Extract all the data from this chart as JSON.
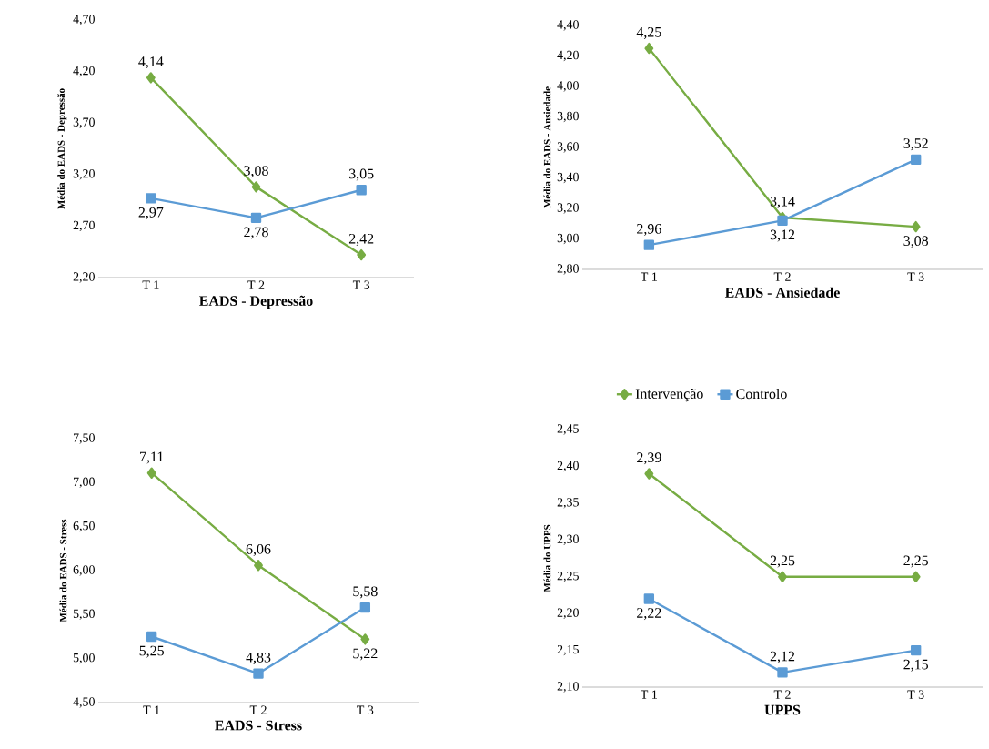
{
  "chart_data": [
    {
      "type": "line",
      "categories": [
        "T 1",
        "T 2",
        "T 3"
      ],
      "xlabel": "EADS - Depressão",
      "ylabel": "Média do EADS - Depressão",
      "ylim": [
        2.2,
        4.7
      ],
      "yticks": [
        {
          "value": 2.2,
          "label": "2,20"
        },
        {
          "value": 2.7,
          "label": "2,70"
        },
        {
          "value": 3.2,
          "label": "3,20"
        },
        {
          "value": 3.7,
          "label": "3,70"
        },
        {
          "value": 4.2,
          "label": "4,20"
        },
        {
          "value": 4.7,
          "label": "4,70"
        }
      ],
      "series": [
        {
          "color": "#77ac43",
          "marker": "diamond",
          "values": [
            4.14,
            3.08,
            2.42
          ],
          "value_labels": [
            "4,14",
            "3,08",
            "2,42"
          ]
        },
        {
          "color": "#5b9bd5",
          "marker": "square",
          "values": [
            2.97,
            2.78,
            3.05
          ],
          "value_labels": [
            "2,97",
            "2,78",
            "3,05"
          ]
        }
      ]
    },
    {
      "type": "line",
      "categories": [
        "T 1",
        "T 2",
        "T 3"
      ],
      "xlabel": "EADS - Ansiedade",
      "ylabel": "Média do EADS - Ansiedade",
      "ylim": [
        2.8,
        4.4
      ],
      "yticks": [
        {
          "value": 2.8,
          "label": "2,80"
        },
        {
          "value": 3.0,
          "label": "3,00"
        },
        {
          "value": 3.2,
          "label": "3,20"
        },
        {
          "value": 3.4,
          "label": "3,40"
        },
        {
          "value": 3.6,
          "label": "3,60"
        },
        {
          "value": 3.8,
          "label": "3,80"
        },
        {
          "value": 4.0,
          "label": "4,00"
        },
        {
          "value": 4.2,
          "label": "4,20"
        },
        {
          "value": 4.4,
          "label": "4,40"
        }
      ],
      "series": [
        {
          "color": "#77ac43",
          "marker": "diamond",
          "values": [
            4.25,
            3.14,
            3.08
          ],
          "value_labels": [
            "4,25",
            "3,14",
            "3,08"
          ]
        },
        {
          "color": "#5b9bd5",
          "marker": "square",
          "values": [
            2.96,
            3.12,
            3.52
          ],
          "value_labels": [
            "2,96",
            "3,12",
            "3,52"
          ]
        }
      ]
    },
    {
      "type": "line",
      "categories": [
        "T 1",
        "T 2",
        "T 3"
      ],
      "xlabel": "EADS - Stress",
      "ylabel": "Média do EADS - Stress",
      "ylim": [
        4.5,
        7.5
      ],
      "yticks": [
        {
          "value": 4.5,
          "label": "4,50"
        },
        {
          "value": 5.0,
          "label": "5,00"
        },
        {
          "value": 5.5,
          "label": "5,50"
        },
        {
          "value": 6.0,
          "label": "6,00"
        },
        {
          "value": 6.5,
          "label": "6,50"
        },
        {
          "value": 7.0,
          "label": "7,00"
        },
        {
          "value": 7.5,
          "label": "7,50"
        }
      ],
      "series": [
        {
          "color": "#77ac43",
          "marker": "diamond",
          "values": [
            7.11,
            6.06,
            5.22
          ],
          "value_labels": [
            "7,11",
            "6,06",
            "5,22"
          ]
        },
        {
          "color": "#5b9bd5",
          "marker": "square",
          "values": [
            5.25,
            4.83,
            5.58
          ],
          "value_labels": [
            "5,25",
            "4,83",
            "5,58"
          ]
        }
      ]
    },
    {
      "type": "line",
      "categories": [
        "T 1",
        "T 2",
        "T 3"
      ],
      "xlabel": "UPPS",
      "ylabel": "Média do UPPS",
      "ylim": [
        2.1,
        2.45
      ],
      "yticks": [
        {
          "value": 2.1,
          "label": "2,10"
        },
        {
          "value": 2.15,
          "label": "2,15"
        },
        {
          "value": 2.2,
          "label": "2,20"
        },
        {
          "value": 2.25,
          "label": "2,25"
        },
        {
          "value": 2.3,
          "label": "2,30"
        },
        {
          "value": 2.35,
          "label": "2,35"
        },
        {
          "value": 2.4,
          "label": "2,40"
        },
        {
          "value": 2.45,
          "label": "2,45"
        }
      ],
      "legend": "top",
      "series": [
        {
          "name": "Intervenção",
          "color": "#77ac43",
          "marker": "diamond",
          "values": [
            2.39,
            2.25,
            2.25
          ],
          "value_labels": [
            "2,39",
            "2,25",
            "2,25"
          ]
        },
        {
          "name": "Controlo",
          "color": "#5b9bd5",
          "marker": "square",
          "values": [
            2.22,
            2.12,
            2.15
          ],
          "value_labels": [
            "2,22",
            "2,12",
            "2,15"
          ]
        }
      ]
    }
  ]
}
